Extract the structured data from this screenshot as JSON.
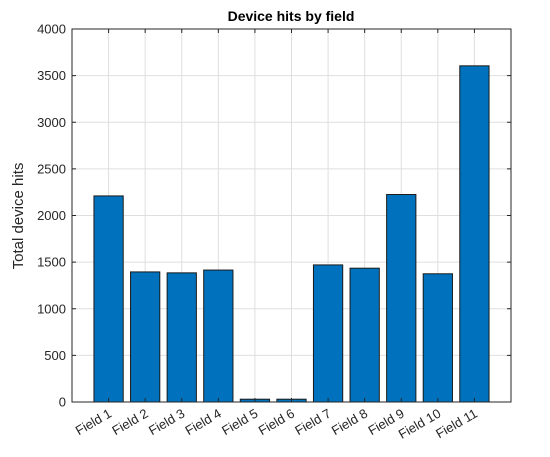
{
  "chart_data": {
    "type": "bar",
    "title": "Device hits by field",
    "xlabel": "",
    "ylabel": "Total device hits",
    "categories": [
      "Field 1",
      "Field 2",
      "Field 3",
      "Field 4",
      "Field 5",
      "Field 6",
      "Field 7",
      "Field 8",
      "Field 9",
      "Field 10",
      "Field 11"
    ],
    "values": [
      2210,
      1395,
      1385,
      1415,
      30,
      30,
      1470,
      1435,
      2225,
      1375,
      3605
    ],
    "ylim": [
      0,
      4000
    ],
    "yticks": [
      0,
      500,
      1000,
      1500,
      2000,
      2500,
      3000,
      3500,
      4000
    ],
    "grid": true,
    "bar_color": "#0072BD"
  }
}
